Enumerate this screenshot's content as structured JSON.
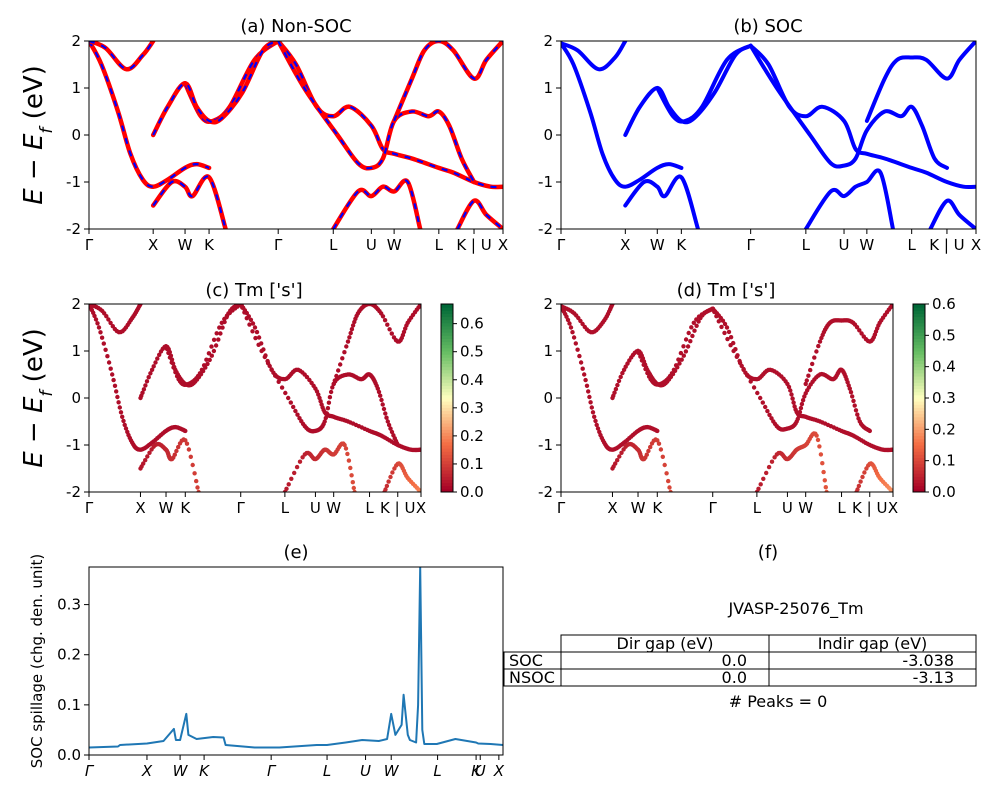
{
  "figure": {
    "material": "JVASP-25076_Tm",
    "peaks_text": "# Peaks = 0",
    "colors": {
      "nonsoc_line": "#ff0000",
      "nonsoc_dash": "#0000ff",
      "soc_line": "#0000ff",
      "spillage_line": "#1f77b4"
    }
  },
  "chart_data": [
    {
      "id": "a",
      "type": "line",
      "title": "(a) Non-SOC",
      "ylabel": "E − E_f (eV)",
      "ylim": [
        -2,
        2
      ],
      "yticks": [
        "-2",
        "-1",
        "0",
        "1",
        "2"
      ],
      "kpath": [
        {
          "label": "Γ",
          "pos": 0
        },
        {
          "label": "X",
          "pos": 0.155
        },
        {
          "label": "W",
          "pos": 0.232
        },
        {
          "label": "K",
          "pos": 0.29
        },
        {
          "label": "Γ",
          "pos": 0.457
        },
        {
          "label": "L",
          "pos": 0.59
        },
        {
          "label": "U",
          "pos": 0.682
        },
        {
          "label": "W",
          "pos": 0.737
        },
        {
          "label": "L",
          "pos": 0.845
        },
        {
          "label": "K | U",
          "pos": 0.93
        },
        {
          "label": "X",
          "pos": 1
        }
      ],
      "bands": [
        {
          "x": [
            0,
            0.03,
            0.07,
            0.1,
            0.13,
            0.155,
            0.19,
            0.232,
            0.26,
            0.29
          ],
          "y": [
            2.0,
            1.5,
            0.5,
            -0.4,
            -0.95,
            -1.1,
            -0.95,
            -0.7,
            -0.62,
            -0.7
          ]
        },
        {
          "x": [
            0,
            0.04,
            0.09,
            0.13,
            0.155
          ],
          "y": [
            2.0,
            1.85,
            1.4,
            1.7,
            2.0
          ]
        },
        {
          "x": [
            0.232,
            0.27,
            0.3,
            0.34,
            0.4,
            0.457
          ],
          "y": [
            1.1,
            0.4,
            0.3,
            0.6,
            1.6,
            2.0
          ]
        },
        {
          "x": [
            0.155,
            0.2,
            0.232,
            0.25,
            0.29,
            0.33
          ],
          "y": [
            -1.5,
            -1.0,
            -1.1,
            -1.3,
            -0.9,
            -2.0
          ]
        },
        {
          "x": [
            0.155,
            0.19,
            0.232,
            0.26,
            0.29,
            0.32,
            0.37,
            0.42,
            0.457
          ],
          "y": [
            0.0,
            0.6,
            1.1,
            0.6,
            0.3,
            0.35,
            0.9,
            1.8,
            2.0
          ]
        },
        {
          "x": [
            0.457,
            0.5,
            0.55,
            0.59,
            0.63,
            0.682,
            0.71,
            0.737,
            0.78,
            0.845,
            0.88,
            0.93,
            0.97,
            1.0
          ],
          "y": [
            2.0,
            1.5,
            0.6,
            0.4,
            0.6,
            0.2,
            -0.3,
            -0.4,
            -0.5,
            -0.7,
            -0.8,
            -1.0,
            -1.1,
            -1.1
          ]
        },
        {
          "x": [
            0.457,
            0.52,
            0.6,
            0.65,
            0.682,
            0.71,
            0.737,
            0.78,
            0.82,
            0.845,
            0.87,
            0.9,
            0.93
          ],
          "y": [
            2.0,
            1.0,
            0.0,
            -0.6,
            -0.7,
            -0.5,
            0.3,
            0.5,
            0.4,
            0.5,
            0.2,
            -0.5,
            -1.0
          ]
        },
        {
          "x": [
            0.737,
            0.78,
            0.81,
            0.845,
            0.88,
            0.93,
            0.96,
            1.0
          ],
          "y": [
            0.3,
            1.2,
            1.8,
            2.0,
            1.8,
            1.2,
            1.6,
            2.0
          ]
        },
        {
          "x": [
            0.59,
            0.65,
            0.682,
            0.71,
            0.737,
            0.77,
            0.8
          ],
          "y": [
            -2.0,
            -1.2,
            -1.3,
            -1.1,
            -1.2,
            -1.0,
            -2.0
          ]
        },
        {
          "x": [
            0.89,
            0.93,
            0.96,
            1.0
          ],
          "y": [
            -2.0,
            -1.4,
            -1.7,
            -2.0
          ]
        }
      ]
    },
    {
      "id": "b",
      "type": "line",
      "title": "(b) SOC",
      "ylim": [
        -2,
        2
      ],
      "yticks": [
        "-2",
        "-1",
        "0",
        "1",
        "2"
      ],
      "kpath": [
        {
          "label": "Γ",
          "pos": 0
        },
        {
          "label": "X",
          "pos": 0.155
        },
        {
          "label": "W",
          "pos": 0.232
        },
        {
          "label": "K",
          "pos": 0.29
        },
        {
          "label": "Γ",
          "pos": 0.457
        },
        {
          "label": "L",
          "pos": 0.59
        },
        {
          "label": "U",
          "pos": 0.682
        },
        {
          "label": "W",
          "pos": 0.737
        },
        {
          "label": "L",
          "pos": 0.845
        },
        {
          "label": "K | U",
          "pos": 0.93
        },
        {
          "label": "X",
          "pos": 1
        }
      ],
      "bands": [
        {
          "x": [
            0,
            0.03,
            0.07,
            0.1,
            0.13,
            0.155,
            0.19,
            0.232,
            0.26,
            0.29
          ],
          "y": [
            1.95,
            1.5,
            0.5,
            -0.4,
            -0.95,
            -1.1,
            -0.95,
            -0.7,
            -0.62,
            -0.7
          ]
        },
        {
          "x": [
            0,
            0.04,
            0.09,
            0.13,
            0.155
          ],
          "y": [
            1.95,
            1.8,
            1.4,
            1.65,
            2.0
          ]
        },
        {
          "x": [
            0.232,
            0.27,
            0.3,
            0.34,
            0.4,
            0.457
          ],
          "y": [
            1.0,
            0.4,
            0.3,
            0.6,
            1.6,
            1.9
          ]
        },
        {
          "x": [
            0.155,
            0.2,
            0.232,
            0.25,
            0.29,
            0.33
          ],
          "y": [
            -1.5,
            -1.0,
            -1.1,
            -1.3,
            -0.9,
            -2.0
          ]
        },
        {
          "x": [
            0.155,
            0.19,
            0.232,
            0.26,
            0.29,
            0.32,
            0.37,
            0.42,
            0.457
          ],
          "y": [
            0.0,
            0.6,
            1.0,
            0.6,
            0.3,
            0.35,
            0.9,
            1.7,
            1.9
          ]
        },
        {
          "x": [
            0.457,
            0.5,
            0.55,
            0.59,
            0.63,
            0.682,
            0.71,
            0.737,
            0.78,
            0.845,
            0.88,
            0.93,
            0.97,
            1.0
          ],
          "y": [
            1.9,
            1.5,
            0.6,
            0.4,
            0.6,
            0.3,
            -0.3,
            -0.4,
            -0.5,
            -0.7,
            -0.8,
            -1.0,
            -1.1,
            -1.1
          ]
        },
        {
          "x": [
            0.457,
            0.52,
            0.6,
            0.65,
            0.682,
            0.71,
            0.737,
            0.78,
            0.82,
            0.845,
            0.87,
            0.9,
            0.93
          ],
          "y": [
            1.9,
            1.0,
            0.0,
            -0.6,
            -0.65,
            -0.5,
            0.1,
            0.5,
            0.4,
            0.6,
            0.2,
            -0.5,
            -0.7
          ]
        },
        {
          "x": [
            0.737,
            0.78,
            0.81,
            0.845,
            0.88,
            0.93,
            0.96,
            1.0
          ],
          "y": [
            0.3,
            1.2,
            1.6,
            1.65,
            1.6,
            1.2,
            1.6,
            2.0
          ]
        },
        {
          "x": [
            0.59,
            0.65,
            0.682,
            0.71,
            0.737,
            0.77,
            0.8
          ],
          "y": [
            -2.0,
            -1.2,
            -1.3,
            -1.1,
            -1.0,
            -0.8,
            -2.0
          ]
        },
        {
          "x": [
            0.89,
            0.93,
            0.96,
            1.0
          ],
          "y": [
            -2.0,
            -1.4,
            -1.7,
            -2.0
          ]
        }
      ]
    },
    {
      "id": "c",
      "type": "scatter",
      "title": "(c)  Tm ['s']",
      "ylabel": "E − E_f (eV)",
      "ylim": [
        -2,
        2
      ],
      "yticks": [
        "-2",
        "-1",
        "0",
        "1",
        "2"
      ],
      "colorbar": {
        "min": 0,
        "max": 0.67,
        "ticks": [
          "0.0",
          "0.1",
          "0.2",
          "0.3",
          "0.4",
          "0.5",
          "0.6"
        ],
        "colormap": "RdYlGn"
      },
      "kpath": [
        {
          "label": "Γ",
          "pos": 0
        },
        {
          "label": "X",
          "pos": 0.155
        },
        {
          "label": "W",
          "pos": 0.232
        },
        {
          "label": "K",
          "pos": 0.29
        },
        {
          "label": "Γ",
          "pos": 0.457
        },
        {
          "label": "L",
          "pos": 0.59
        },
        {
          "label": "U",
          "pos": 0.682
        },
        {
          "label": "W",
          "pos": 0.737
        },
        {
          "label": "L",
          "pos": 0.845
        },
        {
          "label": "K | U",
          "pos": 0.93
        },
        {
          "label": "X",
          "pos": 1
        }
      ],
      "weights": [
        0.02,
        0.02,
        0.02,
        0.1,
        0.02,
        0.02,
        0.02,
        0.02,
        0.12,
        0.2
      ]
    },
    {
      "id": "d",
      "type": "scatter",
      "title": "(d) Tm ['s']",
      "ylim": [
        -2,
        2
      ],
      "yticks": [
        "-2",
        "-1",
        "0",
        "1",
        "2"
      ],
      "colorbar": {
        "min": 0,
        "max": 0.6,
        "ticks": [
          "0.0",
          "0.1",
          "0.2",
          "0.3",
          "0.4",
          "0.5",
          "0.6"
        ],
        "colormap": "RdYlGn"
      },
      "kpath": [
        {
          "label": "Γ",
          "pos": 0
        },
        {
          "label": "X",
          "pos": 0.155
        },
        {
          "label": "W",
          "pos": 0.232
        },
        {
          "label": "K",
          "pos": 0.29
        },
        {
          "label": "Γ",
          "pos": 0.457
        },
        {
          "label": "L",
          "pos": 0.59
        },
        {
          "label": "U",
          "pos": 0.682
        },
        {
          "label": "W",
          "pos": 0.737
        },
        {
          "label": "L",
          "pos": 0.845
        },
        {
          "label": "K | U",
          "pos": 0.93
        },
        {
          "label": "X",
          "pos": 1
        }
      ],
      "weights": [
        0.02,
        0.02,
        0.02,
        0.1,
        0.02,
        0.02,
        0.02,
        0.02,
        0.12,
        0.2
      ]
    },
    {
      "id": "e",
      "type": "line",
      "title": "(e)",
      "ylabel": "SOC spillage (chg. den. unit)",
      "ylim": [
        0,
        0.375
      ],
      "yticks": [
        "0.0",
        "0.1",
        "0.2",
        "0.3"
      ],
      "kpath": [
        {
          "label": "Γ",
          "pos": 0
        },
        {
          "label": "X",
          "pos": 0.14
        },
        {
          "label": "W",
          "pos": 0.22
        },
        {
          "label": "K",
          "pos": 0.278
        },
        {
          "label": "Γ",
          "pos": 0.44
        },
        {
          "label": "L",
          "pos": 0.575
        },
        {
          "label": "U",
          "pos": 0.668
        },
        {
          "label": "W",
          "pos": 0.73
        },
        {
          "label": "L",
          "pos": 0.842
        },
        {
          "label": "K",
          "pos": 0.935
        },
        {
          "label": "U",
          "pos": 0.945
        },
        {
          "label": "X",
          "pos": 0.99
        }
      ],
      "x": [
        0,
        0.07,
        0.075,
        0.14,
        0.18,
        0.205,
        0.21,
        0.22,
        0.235,
        0.24,
        0.26,
        0.3,
        0.325,
        0.33,
        0.4,
        0.46,
        0.55,
        0.575,
        0.62,
        0.66,
        0.7,
        0.72,
        0.73,
        0.74,
        0.755,
        0.76,
        0.77,
        0.775,
        0.79,
        0.795,
        0.8,
        0.805,
        0.81,
        0.82,
        0.84,
        0.885,
        0.935,
        0.94,
        0.97,
        1.0
      ],
      "y": [
        0.015,
        0.017,
        0.02,
        0.023,
        0.028,
        0.052,
        0.03,
        0.03,
        0.082,
        0.04,
        0.032,
        0.036,
        0.035,
        0.02,
        0.015,
        0.015,
        0.02,
        0.02,
        0.025,
        0.03,
        0.028,
        0.032,
        0.082,
        0.04,
        0.06,
        0.12,
        0.04,
        0.03,
        0.025,
        0.1,
        0.375,
        0.05,
        0.022,
        0.022,
        0.022,
        0.032,
        0.025,
        0.023,
        0.022,
        0.02
      ]
    },
    {
      "id": "f",
      "type": "table",
      "title": "(f)",
      "columns": [
        "",
        "Dir gap (eV)",
        "Indir gap (eV)"
      ],
      "rows": [
        [
          "SOC",
          "0.0",
          "-3.038"
        ],
        [
          "NSOC",
          "0.0",
          "-3.13"
        ]
      ]
    }
  ]
}
